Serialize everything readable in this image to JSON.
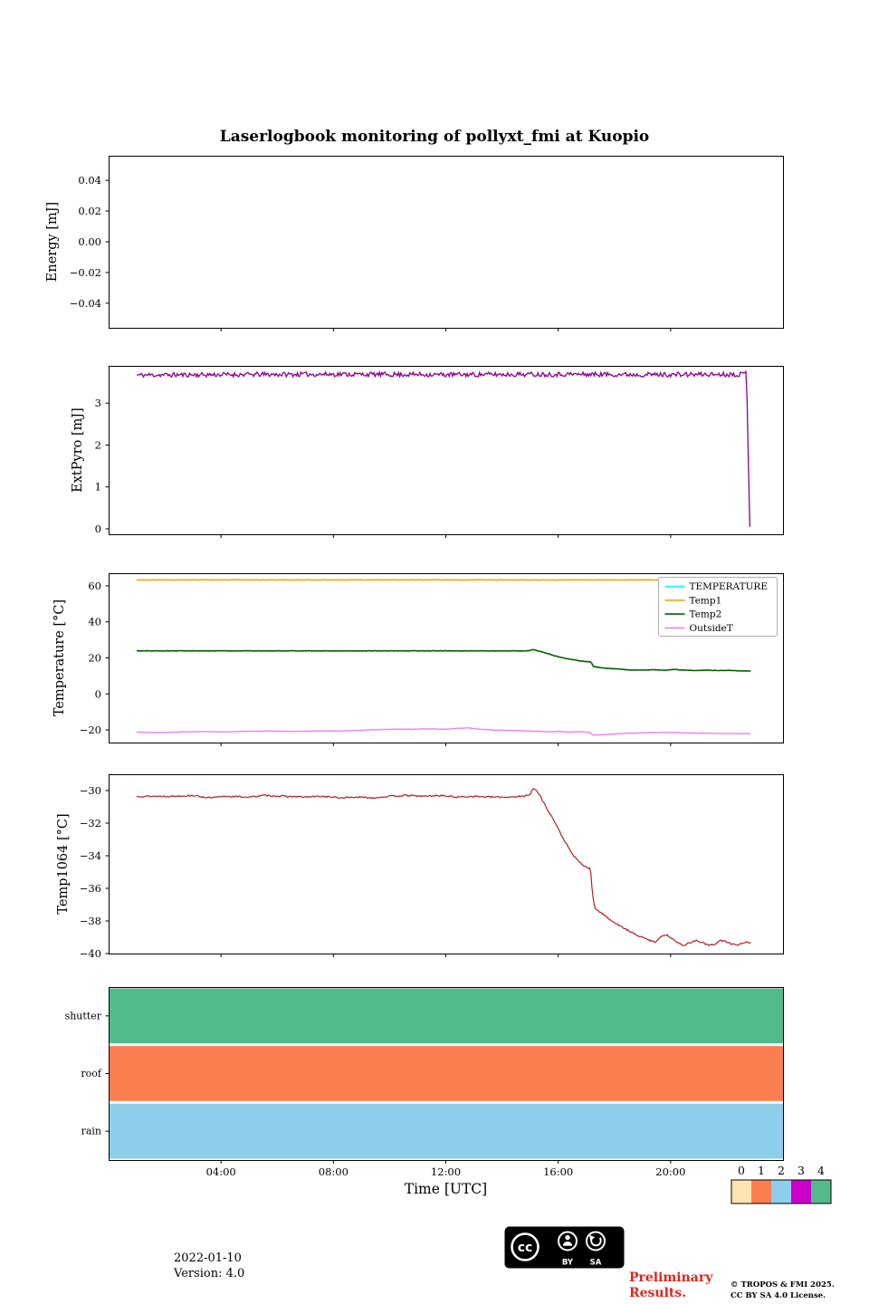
{
  "title": "Laserlogbook monitoring of pollyxt_fmi at Kuopio",
  "xaxis": {
    "label": "Time [UTC]",
    "xlim": [
      0,
      24
    ],
    "ticks": [
      {
        "v": 4,
        "label": "04:00"
      },
      {
        "v": 8,
        "label": "08:00"
      },
      {
        "v": 12,
        "label": "12:00"
      },
      {
        "v": 16,
        "label": "16:00"
      },
      {
        "v": 20,
        "label": "20:00"
      }
    ]
  },
  "colorbar": {
    "ticks": [
      "0",
      "1",
      "2",
      "3",
      "4"
    ],
    "colors": [
      "#FFE3B3",
      "#FB7E51",
      "#8DCEEB",
      "#CC00CC",
      "#53BA8B"
    ]
  },
  "footer": {
    "date": "2022-01-10",
    "version": "Version: 4.0",
    "preliminary_line1": "Preliminary",
    "preliminary_line2": "Results.",
    "copyright_line1": "© TROPOS & FMI 2025.",
    "copyright_line2": "CC BY SA 4.0 License.",
    "cc_badge": {
      "cc": "cc",
      "by": "BY",
      "sa": "SA"
    }
  },
  "chart_data": [
    {
      "id": "energy",
      "type": "line",
      "ylabel": "Energy [mJ]",
      "ylim": [
        -0.056,
        0.056
      ],
      "yticks": [
        {
          "v": 0.04,
          "label": "0.04"
        },
        {
          "v": 0.02,
          "label": "0.02"
        },
        {
          "v": 0.0,
          "label": "0.00"
        },
        {
          "v": -0.02,
          "label": "−0.02"
        },
        {
          "v": -0.04,
          "label": "−0.04"
        }
      ],
      "series": []
    },
    {
      "id": "extpyro",
      "type": "line",
      "ylabel": "ExtPyro [mJ]",
      "ylim": [
        -0.13,
        3.89
      ],
      "yticks": [
        {
          "v": 0,
          "label": "0"
        },
        {
          "v": 1,
          "label": "1"
        },
        {
          "v": 2,
          "label": "2"
        },
        {
          "v": 3,
          "label": "3"
        }
      ],
      "series": [
        {
          "name": "ExtPyro",
          "color": "#8B008B",
          "width": 1.3,
          "noise": 0.055,
          "seed": 11,
          "keypoints": [
            [
              1.0,
              3.67
            ],
            [
              4,
              3.68
            ],
            [
              8,
              3.69
            ],
            [
              12,
              3.68
            ],
            [
              16,
              3.69
            ],
            [
              20,
              3.68
            ],
            [
              22.55,
              3.69
            ],
            [
              22.7,
              3.73
            ],
            [
              22.82,
              0.05
            ]
          ]
        }
      ]
    },
    {
      "id": "temperature",
      "type": "line",
      "ylabel": "Temperature [°C]",
      "ylim": [
        -27,
        67
      ],
      "legend": true,
      "yticks": [
        {
          "v": 60,
          "label": "60"
        },
        {
          "v": 40,
          "label": "40"
        },
        {
          "v": 20,
          "label": "20"
        },
        {
          "v": 0,
          "label": "0"
        },
        {
          "v": -20,
          "label": "−20"
        }
      ],
      "series": [
        {
          "name": "TEMPERATURE",
          "color": "#00FFFF",
          "width": 1.5,
          "noise": 0,
          "seed": 2,
          "keypoints": []
        },
        {
          "name": "Temp1",
          "color": "#FFA500",
          "width": 1.6,
          "noise": 0.12,
          "seed": 3,
          "keypoints": [
            [
              1.0,
              63.3
            ],
            [
              22.85,
              63.3
            ]
          ]
        },
        {
          "name": "Temp2",
          "color": "#006400",
          "width": 1.6,
          "noise": 0.12,
          "seed": 5,
          "keypoints": [
            [
              1,
              23.9
            ],
            [
              14.95,
              23.9
            ],
            [
              15.1,
              24.7
            ],
            [
              15.3,
              23.8
            ],
            [
              15.6,
              22.5
            ],
            [
              16.0,
              20.6
            ],
            [
              16.4,
              19.3
            ],
            [
              16.8,
              18.3
            ],
            [
              17.1,
              17.8
            ],
            [
              17.18,
              17.6
            ],
            [
              17.25,
              15.2
            ],
            [
              17.5,
              14.6
            ],
            [
              17.8,
              14.2
            ],
            [
              18.2,
              13.7
            ],
            [
              18.6,
              13.3
            ],
            [
              19.0,
              13.2
            ],
            [
              19.4,
              13.4
            ],
            [
              19.8,
              13.1
            ],
            [
              20.1,
              13.6
            ],
            [
              20.5,
              13.2
            ],
            [
              20.9,
              12.9
            ],
            [
              21.3,
              13.2
            ],
            [
              21.7,
              13.0
            ],
            [
              22.1,
              13.1
            ],
            [
              22.5,
              12.8
            ],
            [
              22.85,
              12.7
            ]
          ]
        },
        {
          "name": "OutsideT",
          "color": "#EE82EE",
          "width": 1.4,
          "noise": 0.12,
          "seed": 9,
          "keypoints": [
            [
              1,
              -21.2
            ],
            [
              1.8,
              -21.5
            ],
            [
              2.6,
              -21.1
            ],
            [
              3.4,
              -20.9
            ],
            [
              4.2,
              -21.1
            ],
            [
              5.0,
              -20.7
            ],
            [
              5.8,
              -20.6
            ],
            [
              6.6,
              -20.9
            ],
            [
              7.4,
              -20.5
            ],
            [
              8.2,
              -20.6
            ],
            [
              9.0,
              -20.2
            ],
            [
              9.6,
              -19.8
            ],
            [
              10.2,
              -19.6
            ],
            [
              10.8,
              -19.6
            ],
            [
              11.4,
              -19.4
            ],
            [
              12.0,
              -19.6
            ],
            [
              12.4,
              -19.1
            ],
            [
              12.8,
              -18.9
            ],
            [
              13.2,
              -19.6
            ],
            [
              13.8,
              -20.1
            ],
            [
              14.4,
              -20.3
            ],
            [
              15.0,
              -20.6
            ],
            [
              15.6,
              -21.0
            ],
            [
              16.0,
              -20.8
            ],
            [
              16.4,
              -21.2
            ],
            [
              16.8,
              -21.0
            ],
            [
              17.1,
              -21.2
            ],
            [
              17.25,
              -22.9
            ],
            [
              17.6,
              -22.6
            ],
            [
              18.0,
              -22.2
            ],
            [
              18.5,
              -21.8
            ],
            [
              19.0,
              -21.6
            ],
            [
              19.5,
              -21.4
            ],
            [
              20.0,
              -21.3
            ],
            [
              20.5,
              -21.6
            ],
            [
              21.0,
              -21.8
            ],
            [
              21.5,
              -21.9
            ],
            [
              22.0,
              -22.0
            ],
            [
              22.85,
              -22.1
            ]
          ]
        }
      ]
    },
    {
      "id": "temp1064",
      "type": "line",
      "ylabel": "Temp1064 [°C]",
      "ylim": [
        -40.0,
        -29.0
      ],
      "yticks": [
        {
          "v": -30,
          "label": "−30"
        },
        {
          "v": -32,
          "label": "−32"
        },
        {
          "v": -34,
          "label": "−34"
        },
        {
          "v": -36,
          "label": "−36"
        },
        {
          "v": -38,
          "label": "−38"
        },
        {
          "v": -40,
          "label": "−40"
        }
      ],
      "series": [
        {
          "name": "Temp1064",
          "color": "#B22222",
          "width": 1.2,
          "noise": 0.045,
          "seed": 13,
          "keypoints": [
            [
              1,
              -30.35
            ],
            [
              2.2,
              -30.35
            ],
            [
              3,
              -30.3
            ],
            [
              3.6,
              -30.45
            ],
            [
              4.2,
              -30.35
            ],
            [
              5,
              -30.4
            ],
            [
              5.5,
              -30.3
            ],
            [
              6.2,
              -30.35
            ],
            [
              7,
              -30.4
            ],
            [
              7.6,
              -30.35
            ],
            [
              8.2,
              -30.45
            ],
            [
              8.8,
              -30.4
            ],
            [
              9.4,
              -30.45
            ],
            [
              10,
              -30.35
            ],
            [
              10.6,
              -30.3
            ],
            [
              11.2,
              -30.35
            ],
            [
              11.8,
              -30.3
            ],
            [
              12.4,
              -30.4
            ],
            [
              13,
              -30.35
            ],
            [
              13.6,
              -30.4
            ],
            [
              14.2,
              -30.4
            ],
            [
              14.8,
              -30.35
            ],
            [
              15.0,
              -30.2
            ],
            [
              15.1,
              -29.9
            ],
            [
              15.2,
              -29.95
            ],
            [
              15.35,
              -30.3
            ],
            [
              15.5,
              -30.8
            ],
            [
              15.7,
              -31.4
            ],
            [
              15.9,
              -32.0
            ],
            [
              16.1,
              -32.7
            ],
            [
              16.3,
              -33.3
            ],
            [
              16.5,
              -33.9
            ],
            [
              16.7,
              -34.3
            ],
            [
              16.9,
              -34.6
            ],
            [
              17.05,
              -34.75
            ],
            [
              17.15,
              -34.8
            ],
            [
              17.22,
              -36.4
            ],
            [
              17.3,
              -37.2
            ],
            [
              17.45,
              -37.4
            ],
            [
              17.6,
              -37.6
            ],
            [
              17.8,
              -37.85
            ],
            [
              18,
              -38.1
            ],
            [
              18.3,
              -38.4
            ],
            [
              18.6,
              -38.7
            ],
            [
              18.9,
              -38.95
            ],
            [
              19.2,
              -39.15
            ],
            [
              19.45,
              -39.3
            ],
            [
              19.65,
              -38.95
            ],
            [
              19.85,
              -38.85
            ],
            [
              20.05,
              -39.05
            ],
            [
              20.25,
              -39.35
            ],
            [
              20.45,
              -39.5
            ],
            [
              20.65,
              -39.35
            ],
            [
              20.9,
              -39.2
            ],
            [
              21.1,
              -39.3
            ],
            [
              21.35,
              -39.5
            ],
            [
              21.55,
              -39.45
            ],
            [
              21.75,
              -39.2
            ],
            [
              21.95,
              -39.25
            ],
            [
              22.15,
              -39.4
            ],
            [
              22.35,
              -39.5
            ],
            [
              22.55,
              -39.35
            ],
            [
              22.7,
              -39.3
            ],
            [
              22.85,
              -39.35
            ]
          ]
        }
      ]
    },
    {
      "id": "status",
      "type": "status",
      "x_range": [
        0,
        24
      ],
      "categories": [
        {
          "label": "shutter",
          "value": 4,
          "color": "#53BA8B"
        },
        {
          "label": "roof",
          "value": 1,
          "color": "#FB7E51"
        },
        {
          "label": "rain",
          "value": 2,
          "color": "#8DCEEB"
        }
      ]
    }
  ]
}
